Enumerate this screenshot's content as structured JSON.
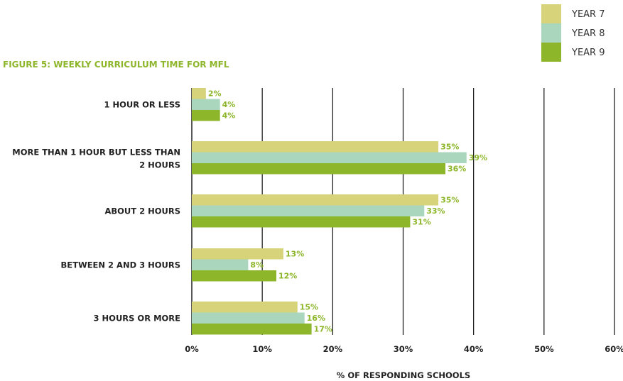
{
  "chart_data": {
    "type": "bar",
    "orientation": "horizontal",
    "title": "FIGURE 5: WEEKLY CURRICULUM TIME FOR MFL",
    "xlabel": "% OF RESPONDING SCHOOLS",
    "ylabel": "",
    "xlim": [
      0,
      60
    ],
    "x_ticks": [
      0,
      10,
      20,
      30,
      40,
      50,
      60
    ],
    "x_tick_labels": [
      "0%",
      "10%",
      "20%",
      "30%",
      "40%",
      "50%",
      "60%"
    ],
    "grid": "vertical gridlines",
    "legend_position": "top-right",
    "categories": [
      [
        "1 HOUR OR LESS"
      ],
      [
        "MORE THAN 1 HOUR BUT LESS THAN",
        "2 HOURS"
      ],
      [
        "ABOUT 2 HOURS"
      ],
      [
        "BETWEEN 2 AND 3 HOURS"
      ],
      [
        "3 HOURS OR MORE"
      ]
    ],
    "series": [
      {
        "name": "YEAR 7",
        "color": "#d6d37a",
        "values": [
          2,
          35,
          35,
          13,
          15
        ],
        "labels": [
          "2%",
          "35%",
          "35%",
          "13%",
          "15%"
        ]
      },
      {
        "name": "YEAR 8",
        "color": "#a9d6bd",
        "values": [
          4,
          39,
          33,
          8,
          16
        ],
        "labels": [
          "4%",
          "39%",
          "33%",
          "8%",
          "16%"
        ]
      },
      {
        "name": "YEAR 9",
        "color": "#8db62a",
        "values": [
          4,
          36,
          31,
          12,
          17
        ],
        "labels": [
          "4%",
          "36%",
          "31%",
          "12%",
          "17%"
        ]
      }
    ]
  },
  "colors": {
    "title": "#8db62a",
    "label": "#8db62a",
    "text": "#222222",
    "grid": "#111111"
  }
}
